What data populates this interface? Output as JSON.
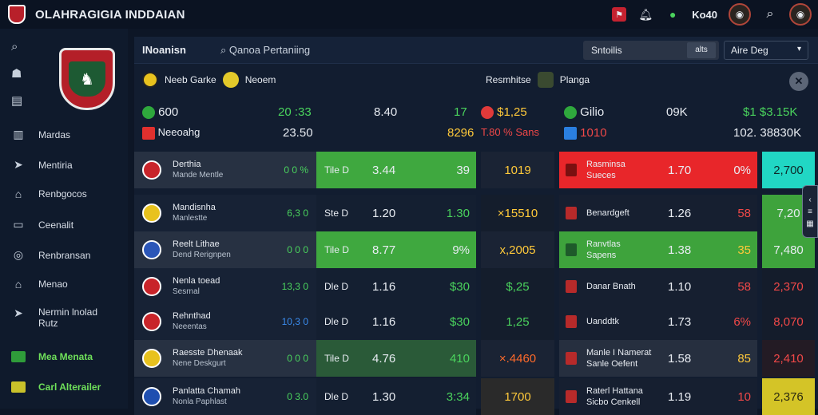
{
  "app": {
    "title": "OLAHRAGIGIA INDDAIAN"
  },
  "topbar": {
    "counter_label": "Ko40"
  },
  "sidebar": {
    "items": [
      {
        "label": "Mardas",
        "icon": "columns-icon"
      },
      {
        "label": "Mentiria",
        "icon": "bird-icon"
      },
      {
        "label": "Renbgocos",
        "icon": "home-icon"
      },
      {
        "label": "Ceenalit",
        "icon": "monitor-icon"
      },
      {
        "label": "Renbransan",
        "icon": "target-icon"
      },
      {
        "label": "Menao",
        "icon": "home-icon"
      },
      {
        "label": "Nermin lnolad",
        "label2": "Rutz",
        "icon": "bird-icon"
      },
      {
        "label": "Mea Menata",
        "icon": "flag-icon"
      },
      {
        "label": "Carl Alterailer",
        "icon": "flag-icon"
      }
    ]
  },
  "main": {
    "title": "INoanisn",
    "search_label": "Qanoa Pertaniing",
    "select1": {
      "label": "Sntoilis",
      "sub": "alts"
    },
    "select2": {
      "label": "Aire Deg"
    }
  },
  "match": {
    "team1": "Neeb Garke",
    "team2": "Neoem",
    "team3": "Resmhitse",
    "team4": "Planga"
  },
  "summary": {
    "row1": [
      "600",
      "20 :33",
      "8.40",
      "17",
      "$1,25",
      "Gilio",
      "09K",
      "$1 $3.15K"
    ],
    "row2": [
      "Neeoahg",
      "23.50",
      "8296",
      "T.80 % Sans",
      "1010",
      "102. 38830K"
    ]
  },
  "rows": [
    {
      "name": "Derthia",
      "name2": "Mande Mentle",
      "mark": "0 0 %",
      "l": "Tile D",
      "odd": "3.44",
      "r": "39",
      "mid": "1019",
      "t2": "Rasminsa",
      "t2b": "Sueces",
      "v": "1.70",
      "p": "0%",
      "last": "2,700"
    },
    {
      "name": "Mandisnha",
      "name2": "Manlestte",
      "mark": "6,3 0",
      "l": "Ste D",
      "odd": "1.20",
      "r": "1.30",
      "mid": "×15510",
      "t2": "Benardgeft",
      "t2b": "",
      "v": "1.26",
      "p": "58",
      "last": "7,20"
    },
    {
      "name": "Reelt Lithae",
      "name2": "Dend Rerignpen",
      "mark": "0 0 0",
      "l": "Tile D",
      "odd": "8.77",
      "r": "9%",
      "mid": "x,2005",
      "t2": "Ranvtlas",
      "t2b": "Sapens",
      "v": "1.38",
      "p": "35",
      "last": "7,480"
    },
    {
      "name": "Nenla toead",
      "name2": "Sesrnal",
      "mark": "13,3 0",
      "l": "Dle D",
      "odd": "1.16",
      "r": "$30",
      "mid": "$,25",
      "t2": "Danar Bnath",
      "t2b": "",
      "v": "1.10",
      "p": "58",
      "last": "2,370"
    },
    {
      "name": "Rehnthad",
      "name2": "Neeentas",
      "mark": "10,3 0",
      "l": "Dle D",
      "odd": "1.16",
      "r": "$30",
      "mid": "1,25",
      "t2": "Uanddtk",
      "t2b": "",
      "v": "1.73",
      "p": "6%",
      "last": "8,070"
    },
    {
      "name": "Raesste Dhenaak",
      "name2": "Nene Deskgurt",
      "mark": "0 0 0",
      "l": "Tile D",
      "odd": "4.76",
      "r": "410",
      "mid": "×.4460",
      "t2": "Manle I Namerat",
      "t2b": "Sanle Oefent",
      "v": "1.58",
      "p": "85",
      "last": "2,410"
    },
    {
      "name": "Panlatta Chamah",
      "name2": "Nonla Paphlast",
      "mark": "0 3.0",
      "l": "Dle D",
      "odd": "1.30",
      "r": "3:34",
      "mid": "1700",
      "t2": "Raterl Hattana",
      "t2b": "Sicbo Cenkell",
      "v": "1.19",
      "p": "10",
      "last": "2,376"
    }
  ]
}
